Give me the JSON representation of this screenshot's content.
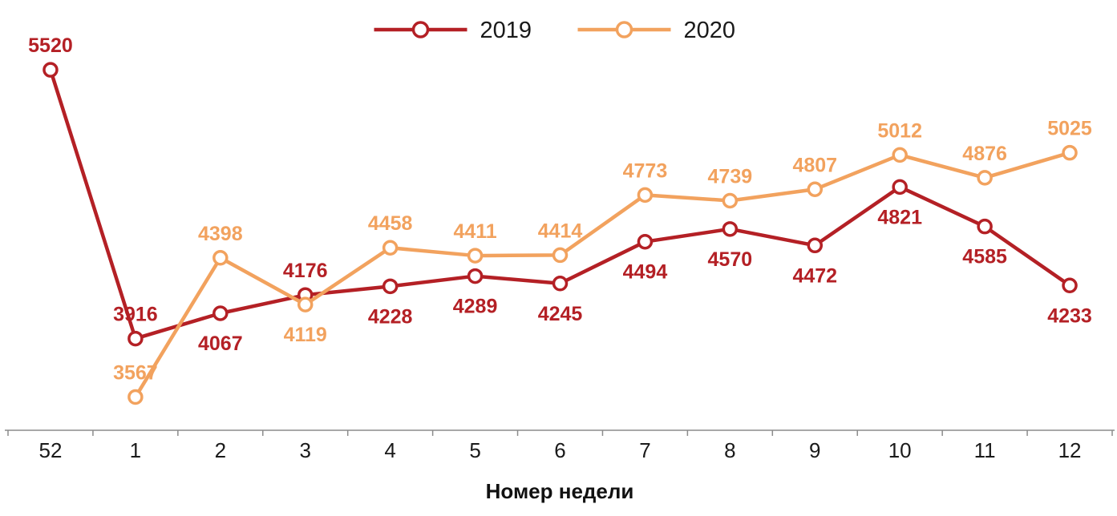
{
  "chart_data": {
    "type": "line",
    "title": "",
    "xlabel": "Номер недели",
    "ylabel": "",
    "categories": [
      "52",
      "1",
      "2",
      "3",
      "4",
      "5",
      "6",
      "7",
      "8",
      "9",
      "10",
      "11",
      "12"
    ],
    "series": [
      {
        "name": "2019",
        "color": "#b42025",
        "values": [
          5520,
          3916,
          4067,
          4176,
          4228,
          4289,
          4245,
          4494,
          4570,
          4472,
          4821,
          4585,
          4233
        ],
        "label_positions": [
          "above",
          "above",
          "below",
          "above",
          "below",
          "below",
          "below",
          "below",
          "below",
          "below",
          "below",
          "below",
          "below"
        ]
      },
      {
        "name": "2020",
        "color": "#f2a25e",
        "values": [
          null,
          3567,
          4398,
          4119,
          4458,
          4411,
          4414,
          4773,
          4739,
          4807,
          5012,
          4876,
          5025
        ],
        "label_positions": [
          null,
          "above",
          "above",
          "below",
          "above",
          "above",
          "above",
          "above",
          "above",
          "above",
          "above",
          "above",
          "above"
        ]
      }
    ],
    "ylim": [
      3450,
      5650
    ],
    "grid": false,
    "legend_position": "top-center",
    "marker": "circle-open",
    "axis_color": "#8c8c8c",
    "category_text_color": "#1a1a1a",
    "background": "#ffffff"
  }
}
